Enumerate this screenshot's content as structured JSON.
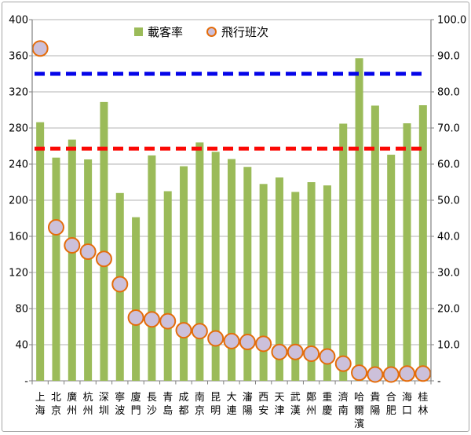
{
  "legend": {
    "items": [
      {
        "label": "載客率",
        "swatch": "green-bar-swatch"
      },
      {
        "label": "飛行班次",
        "swatch": "circle-marker-swatch"
      }
    ]
  },
  "colors": {
    "bar": "#9bbb59",
    "marker_fill": "#ccc0da",
    "marker_stroke": "#e46c0a",
    "blue_line": "#0505e8",
    "red_line": "#fb0905",
    "gridline": "#b3b3b3",
    "axis": "#808080",
    "text": "#000000"
  },
  "chart_data": {
    "type": "bar",
    "subtype": "combo-bar-scatter",
    "title": "",
    "categories": [
      "上海",
      "北京",
      "廣州",
      "杭州",
      "深圳",
      "寧波",
      "廈門",
      "長沙",
      "青島",
      "成都",
      "南京",
      "昆明",
      "大連",
      "瀋陽",
      "西安",
      "天津",
      "武漢",
      "鄭州",
      "重慶",
      "濟南",
      "哈爾濱",
      "貴陽",
      "合肥",
      "海口",
      "桂林"
    ],
    "series": [
      {
        "name": "載客率",
        "type": "bar",
        "axis": "right",
        "color": "#9bbb59",
        "values": [
          71.6,
          61.8,
          66.8,
          61.3,
          77.2,
          52.0,
          45.3,
          62.4,
          52.5,
          59.4,
          66.0,
          63.4,
          61.4,
          59.2,
          54.5,
          56.3,
          52.3,
          55.0,
          54.1,
          71.2,
          89.3,
          76.2,
          62.6,
          71.3,
          76.3
        ]
      },
      {
        "name": "飛行班次",
        "type": "scatter",
        "axis": "left",
        "marker": "circle",
        "fill": "#ccc0da",
        "stroke": "#e46c0a",
        "values": [
          368,
          170,
          150,
          143,
          135,
          107,
          70,
          68,
          66,
          56,
          55,
          47,
          44,
          43,
          41,
          32,
          32,
          30,
          27,
          19,
          9,
          7,
          7,
          8,
          8
        ]
      }
    ],
    "reference_lines": [
      {
        "name": "blue-dashed-line",
        "right_value": 85.0,
        "left_value": 340,
        "color": "#0505e8",
        "style": "dashed"
      },
      {
        "name": "red-dashed-line",
        "right_value": 64.3,
        "left_value": 257,
        "color": "#fb0905",
        "style": "dashed"
      }
    ],
    "left_axis": {
      "min": 0,
      "max": 400,
      "step": 40,
      "labels_top_to_bottom": [
        "400",
        "360",
        "320",
        "280",
        "240",
        "200",
        "160",
        "120",
        "80",
        "40",
        "-"
      ]
    },
    "right_axis": {
      "min": 0,
      "max": 100,
      "step": 10,
      "labels_top_to_bottom": [
        "100.0",
        "90.0",
        "80.0",
        "70.0",
        "60.0",
        "50.0",
        "40.0",
        "30.0",
        "20.0",
        "10.0",
        "-"
      ]
    },
    "grid": true,
    "legend_position": "top-center"
  }
}
